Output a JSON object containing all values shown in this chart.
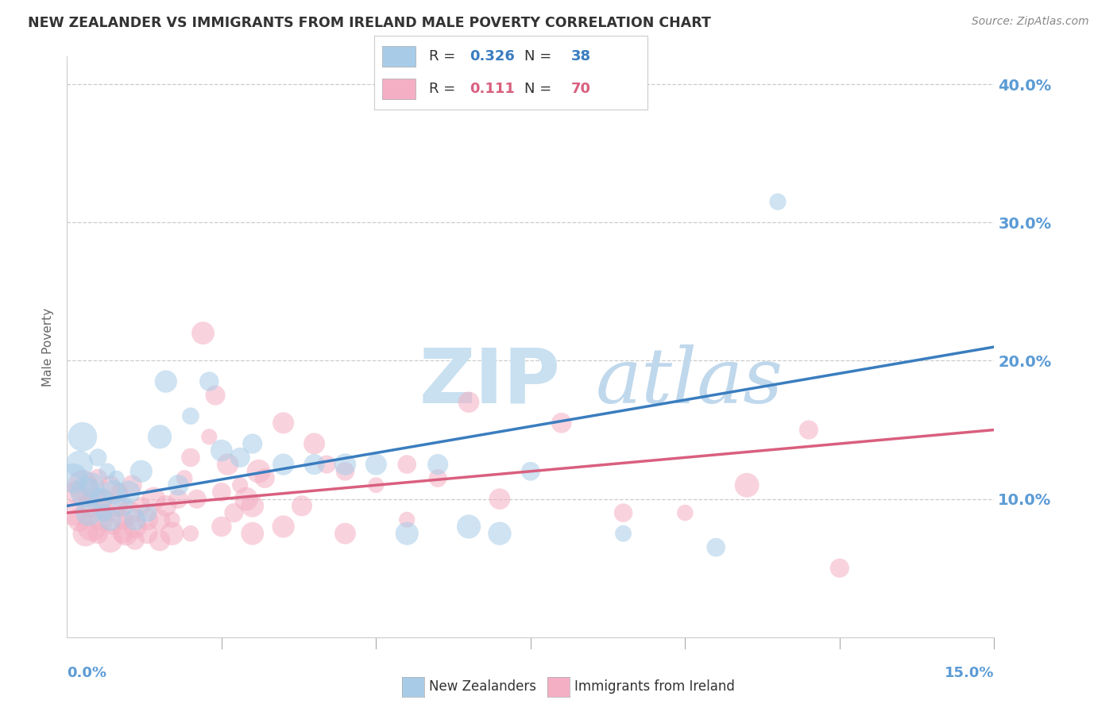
{
  "title": "NEW ZEALANDER VS IMMIGRANTS FROM IRELAND MALE POVERTY CORRELATION CHART",
  "source": "Source: ZipAtlas.com",
  "ylabel": "Male Poverty",
  "xlim": [
    0.0,
    15.0
  ],
  "ylim": [
    0.0,
    42.0
  ],
  "ytick_vals": [
    10.0,
    20.0,
    30.0,
    40.0
  ],
  "xtick_vals": [
    0.0,
    2.5,
    5.0,
    7.5,
    10.0,
    12.5,
    15.0
  ],
  "nz_label": "New Zealanders",
  "ireland_label": "Immigrants from Ireland",
  "blue_scatter_color": "#a8cce8",
  "pink_scatter_color": "#f4afc4",
  "blue_line_color": "#3a7dbf",
  "pink_line_color": "#d95f7f",
  "blue_legend_color": "#3a7dbf",
  "pink_legend_color": "#d95f7f",
  "watermark_zip_color": "#c8e0f0",
  "watermark_atlas_color": "#c0d8ec",
  "axis_tick_color": "#5b9bd5",
  "background_color": "#ffffff",
  "grid_color": "#cccccc",
  "blue_line_y0": 9.5,
  "blue_line_y1": 21.0,
  "pink_line_y0": 9.0,
  "pink_line_y1": 15.0,
  "blue_scatter": [
    [
      0.1,
      11.5
    ],
    [
      0.2,
      12.5
    ],
    [
      0.25,
      14.5
    ],
    [
      0.3,
      10.5
    ],
    [
      0.35,
      9.0
    ],
    [
      0.4,
      11.0
    ],
    [
      0.5,
      13.0
    ],
    [
      0.55,
      10.0
    ],
    [
      0.6,
      9.0
    ],
    [
      0.65,
      12.0
    ],
    [
      0.7,
      8.5
    ],
    [
      0.75,
      10.5
    ],
    [
      0.8,
      11.5
    ],
    [
      0.9,
      9.5
    ],
    [
      1.0,
      10.5
    ],
    [
      1.1,
      8.5
    ],
    [
      1.2,
      12.0
    ],
    [
      1.3,
      9.0
    ],
    [
      1.5,
      14.5
    ],
    [
      1.6,
      18.5
    ],
    [
      1.8,
      11.0
    ],
    [
      2.0,
      16.0
    ],
    [
      2.3,
      18.5
    ],
    [
      2.5,
      13.5
    ],
    [
      2.8,
      13.0
    ],
    [
      3.0,
      14.0
    ],
    [
      3.5,
      12.5
    ],
    [
      4.0,
      12.5
    ],
    [
      4.5,
      12.5
    ],
    [
      5.0,
      12.5
    ],
    [
      5.5,
      7.5
    ],
    [
      6.0,
      12.5
    ],
    [
      6.5,
      8.0
    ],
    [
      7.5,
      12.0
    ],
    [
      9.0,
      7.5
    ],
    [
      10.5,
      6.5
    ],
    [
      11.5,
      31.5
    ],
    [
      7.0,
      7.5
    ]
  ],
  "pink_scatter": [
    [
      0.1,
      9.0
    ],
    [
      0.15,
      10.5
    ],
    [
      0.2,
      8.5
    ],
    [
      0.25,
      11.0
    ],
    [
      0.3,
      7.5
    ],
    [
      0.35,
      9.5
    ],
    [
      0.4,
      8.0
    ],
    [
      0.45,
      10.0
    ],
    [
      0.5,
      11.5
    ],
    [
      0.55,
      8.5
    ],
    [
      0.6,
      10.0
    ],
    [
      0.65,
      9.0
    ],
    [
      0.7,
      11.0
    ],
    [
      0.75,
      8.0
    ],
    [
      0.8,
      9.5
    ],
    [
      0.85,
      10.5
    ],
    [
      0.9,
      8.5
    ],
    [
      0.95,
      7.5
    ],
    [
      1.0,
      9.0
    ],
    [
      1.05,
      11.0
    ],
    [
      1.1,
      8.0
    ],
    [
      1.2,
      9.5
    ],
    [
      1.3,
      8.5
    ],
    [
      1.4,
      10.0
    ],
    [
      1.5,
      8.5
    ],
    [
      1.6,
      9.5
    ],
    [
      1.7,
      8.5
    ],
    [
      1.8,
      10.0
    ],
    [
      1.9,
      11.5
    ],
    [
      2.0,
      13.0
    ],
    [
      2.1,
      10.0
    ],
    [
      2.2,
      22.0
    ],
    [
      2.3,
      14.5
    ],
    [
      2.4,
      17.5
    ],
    [
      2.5,
      10.5
    ],
    [
      2.6,
      12.5
    ],
    [
      2.7,
      9.0
    ],
    [
      2.8,
      11.0
    ],
    [
      2.9,
      10.0
    ],
    [
      3.0,
      9.5
    ],
    [
      3.1,
      12.0
    ],
    [
      3.2,
      11.5
    ],
    [
      3.5,
      15.5
    ],
    [
      3.8,
      9.5
    ],
    [
      4.0,
      14.0
    ],
    [
      4.2,
      12.5
    ],
    [
      4.5,
      12.0
    ],
    [
      5.0,
      11.0
    ],
    [
      5.5,
      12.5
    ],
    [
      6.0,
      11.5
    ],
    [
      6.5,
      17.0
    ],
    [
      7.0,
      10.0
    ],
    [
      8.0,
      15.5
    ],
    [
      9.0,
      9.0
    ],
    [
      10.0,
      9.0
    ],
    [
      11.0,
      11.0
    ],
    [
      12.0,
      15.0
    ],
    [
      0.5,
      7.5
    ],
    [
      0.7,
      7.0
    ],
    [
      0.9,
      7.5
    ],
    [
      1.1,
      7.0
    ],
    [
      1.3,
      7.5
    ],
    [
      1.5,
      7.0
    ],
    [
      1.7,
      7.5
    ],
    [
      2.0,
      7.5
    ],
    [
      2.5,
      8.0
    ],
    [
      3.0,
      7.5
    ],
    [
      3.5,
      8.0
    ],
    [
      4.5,
      7.5
    ],
    [
      5.5,
      8.5
    ],
    [
      12.5,
      5.0
    ]
  ]
}
